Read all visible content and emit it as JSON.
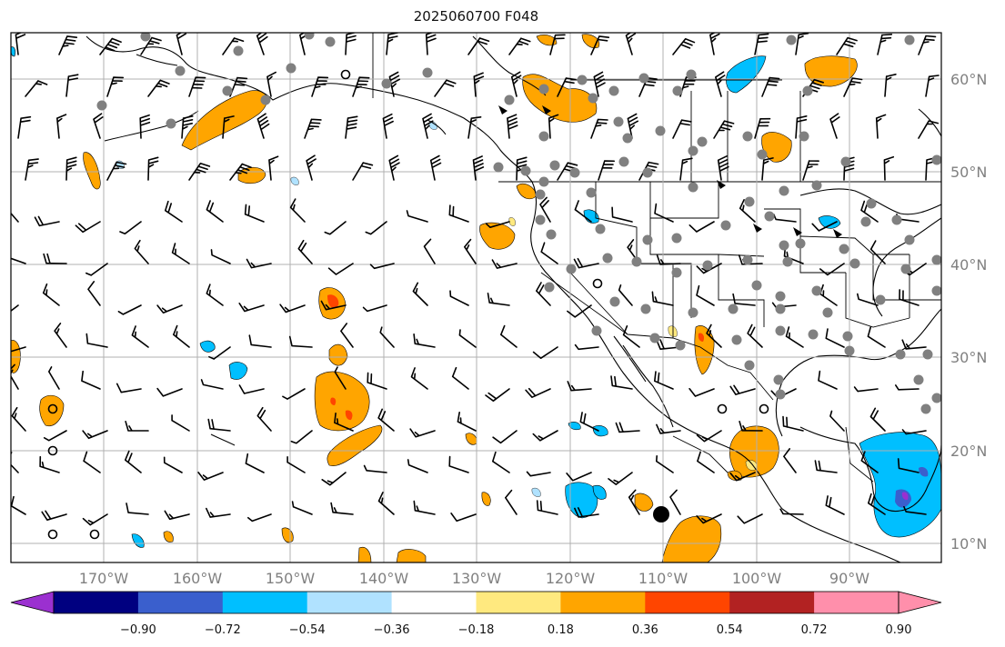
{
  "title": "2025060700 F048",
  "map": {
    "projection": "PlateCarree",
    "lon_range": [
      -180,
      -80
    ],
    "lat_range": [
      8,
      65
    ],
    "gridlines": true,
    "lon_ticks": [
      {
        "value": -170,
        "label": "170°W"
      },
      {
        "value": -160,
        "label": "160°W"
      },
      {
        "value": -150,
        "label": "150°W"
      },
      {
        "value": -140,
        "label": "140°W"
      },
      {
        "value": -130,
        "label": "130°W"
      },
      {
        "value": -120,
        "label": "120°W"
      },
      {
        "value": -110,
        "label": "110°W"
      },
      {
        "value": -100,
        "label": "100°W"
      },
      {
        "value": -90,
        "label": "90°W"
      }
    ],
    "lat_ticks": [
      {
        "value": 60,
        "label": "60°N"
      },
      {
        "value": 50,
        "label": "50°N"
      },
      {
        "value": 40,
        "label": "40°N"
      },
      {
        "value": 30,
        "label": "30°N"
      },
      {
        "value": 20,
        "label": "20°N"
      },
      {
        "value": 10,
        "label": "10°N"
      }
    ]
  },
  "colorbar": {
    "extend": "both",
    "colors": {
      "under": "#9b30d0",
      "bins": [
        "#000080",
        "#3a5fcd",
        "#00bfff",
        "#b0e2ff",
        "#ffffff",
        "#ffe97f",
        "#ffa500",
        "#ff4500",
        "#b22222",
        "#ff8fab"
      ]
    },
    "tick_labels": [
      "−0.90",
      "−0.72",
      "−0.54",
      "−0.36",
      "−0.18",
      "0.18",
      "0.36",
      "0.54",
      "0.72",
      "0.90"
    ]
  },
  "colors": {
    "land_outline": "#000000",
    "station_marker": "#808080",
    "grid": "#b0b0b0",
    "barb": "#000000"
  }
}
